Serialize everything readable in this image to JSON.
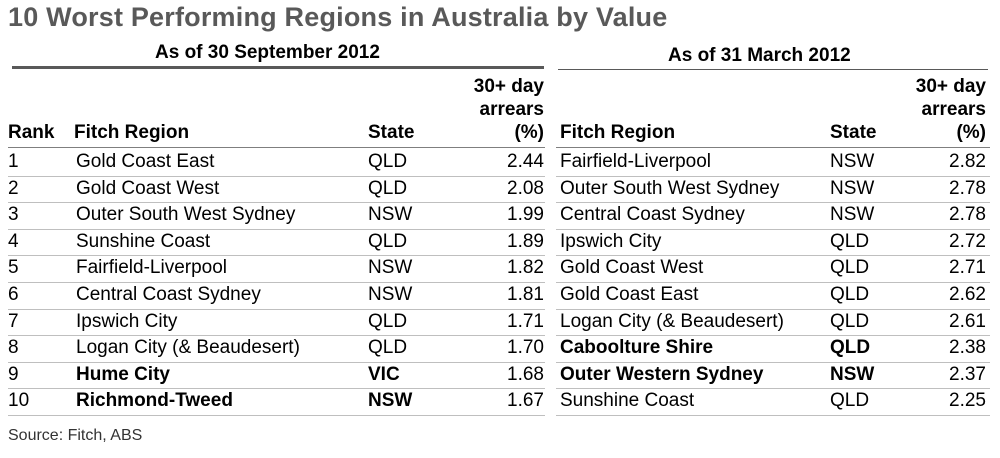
{
  "title": "10 Worst Performing Regions in Australia by Value",
  "left_period": "As of 30 September 2012",
  "right_period": "As of 31 March 2012",
  "headers": {
    "rank": "Rank",
    "region": "Fitch Region",
    "state": "State",
    "arrears_line1": "30+ day",
    "arrears_line2": "arrears",
    "arrears_line3": "(%)"
  },
  "source": "Source: Fitch, ABS",
  "chart_data": {
    "type": "table",
    "title": "10 Worst Performing Regions in Australia by Value",
    "columns": [
      "Rank",
      "Fitch Region",
      "State",
      "30+ day arrears (%)",
      "Fitch Region",
      "State",
      "30+ day arrears (%)"
    ],
    "rows": [
      {
        "rank": "1",
        "sep_region": "Gold Coast East",
        "sep_state": "QLD",
        "sep_value": "2.44",
        "sep_bold": false,
        "mar_region": "Fairfield-Liverpool",
        "mar_state": "NSW",
        "mar_value": "2.82",
        "mar_bold": false
      },
      {
        "rank": "2",
        "sep_region": "Gold Coast West",
        "sep_state": "QLD",
        "sep_value": "2.08",
        "sep_bold": false,
        "mar_region": "Outer South West Sydney",
        "mar_state": "NSW",
        "mar_value": "2.78",
        "mar_bold": false
      },
      {
        "rank": "3",
        "sep_region": "Outer South West Sydney",
        "sep_state": "NSW",
        "sep_value": "1.99",
        "sep_bold": false,
        "mar_region": "Central Coast Sydney",
        "mar_state": "NSW",
        "mar_value": "2.78",
        "mar_bold": false
      },
      {
        "rank": "4",
        "sep_region": "Sunshine Coast",
        "sep_state": "QLD",
        "sep_value": "1.89",
        "sep_bold": false,
        "mar_region": "Ipswich City",
        "mar_state": "QLD",
        "mar_value": "2.72",
        "mar_bold": false
      },
      {
        "rank": "5",
        "sep_region": "Fairfield-Liverpool",
        "sep_state": "NSW",
        "sep_value": "1.82",
        "sep_bold": false,
        "mar_region": "Gold Coast West",
        "mar_state": "QLD",
        "mar_value": "2.71",
        "mar_bold": false
      },
      {
        "rank": "6",
        "sep_region": "Central Coast Sydney",
        "sep_state": "NSW",
        "sep_value": "1.81",
        "sep_bold": false,
        "mar_region": "Gold Coast East",
        "mar_state": "QLD",
        "mar_value": "2.62",
        "mar_bold": false
      },
      {
        "rank": "7",
        "sep_region": "Ipswich City",
        "sep_state": "QLD",
        "sep_value": "1.71",
        "sep_bold": false,
        "mar_region": "Logan City (& Beaudesert)",
        "mar_state": "QLD",
        "mar_value": "2.61",
        "mar_bold": false
      },
      {
        "rank": "8",
        "sep_region": "Logan City (& Beaudesert)",
        "sep_state": "QLD",
        "sep_value": "1.70",
        "sep_bold": false,
        "mar_region": "Caboolture Shire",
        "mar_state": "QLD",
        "mar_value": "2.38",
        "mar_bold": true
      },
      {
        "rank": "9",
        "sep_region": "Hume City",
        "sep_state": "VIC",
        "sep_value": "1.68",
        "sep_bold": true,
        "mar_region": "Outer Western Sydney",
        "mar_state": "NSW",
        "mar_value": "2.37",
        "mar_bold": true
      },
      {
        "rank": "10",
        "sep_region": "Richmond-Tweed",
        "sep_state": "NSW",
        "sep_value": "1.67",
        "sep_bold": true,
        "mar_region": "Sunshine Coast",
        "mar_state": "QLD",
        "mar_value": "2.25",
        "mar_bold": false
      }
    ]
  }
}
